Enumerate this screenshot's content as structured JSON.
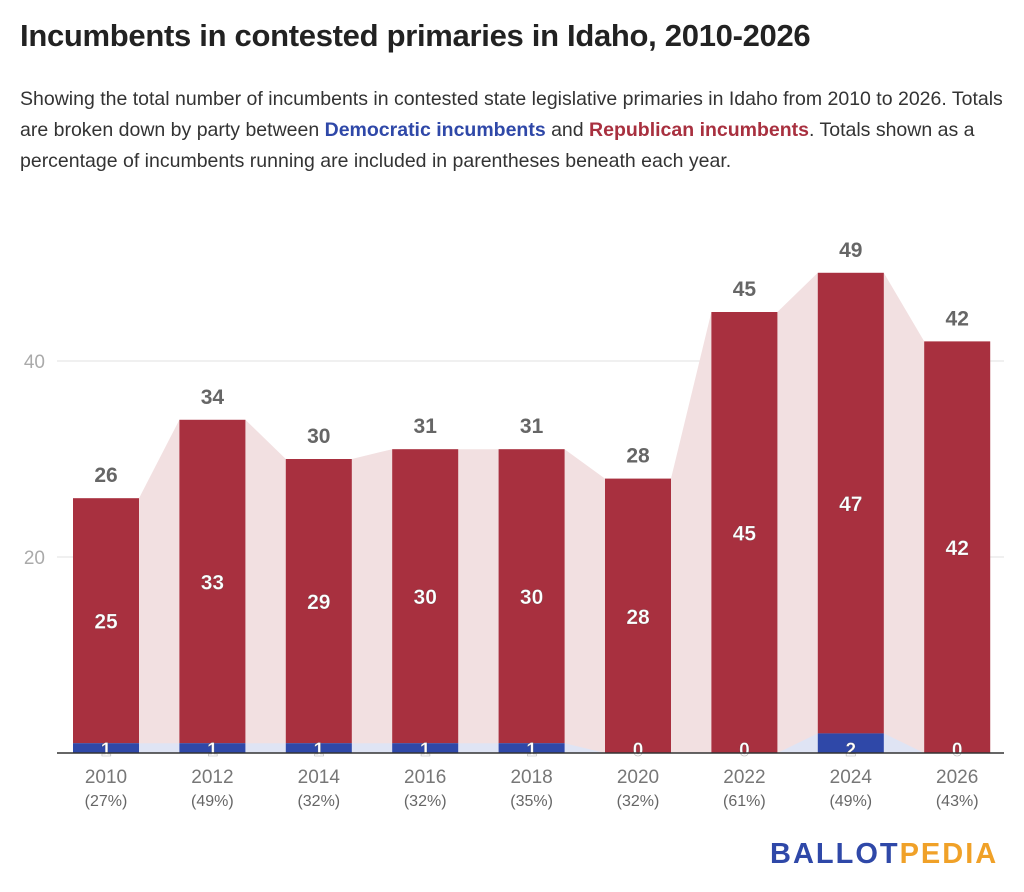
{
  "title": "Incumbents in contested primaries in Idaho, 2010-2026",
  "subtitle": {
    "part1": "Showing the total number of incumbents in contested state legislative primaries in Idaho from 2010 to 2026. Totals are broken down by party between ",
    "dem": "Democratic incumbents",
    "part2": " and ",
    "rep": "Republican incumbents",
    "part3": ". Totals shown as a percentage of incumbents running are included in parentheses beneath each year."
  },
  "logo": {
    "part1": "BALLOT",
    "part2": "PEDIA"
  },
  "colors": {
    "rep": "#a8303f",
    "dem": "#2f48a8",
    "rep_area": "#f2e0e1",
    "dem_area": "#dfe4f4"
  },
  "chart_data": {
    "type": "bar",
    "stacked": true,
    "categories": [
      "2010",
      "2012",
      "2014",
      "2016",
      "2018",
      "2020",
      "2022",
      "2024",
      "2026"
    ],
    "percent_labels": [
      "(27%)",
      "(49%)",
      "(32%)",
      "(32%)",
      "(35%)",
      "(32%)",
      "(61%)",
      "(49%)",
      "(43%)"
    ],
    "series": [
      {
        "name": "Democratic incumbents",
        "values": [
          1,
          1,
          1,
          1,
          1,
          0,
          0,
          2,
          0
        ]
      },
      {
        "name": "Republican incumbents",
        "values": [
          25,
          33,
          29,
          30,
          30,
          28,
          45,
          47,
          42
        ]
      }
    ],
    "totals": [
      26,
      34,
      30,
      31,
      31,
      28,
      45,
      49,
      42
    ],
    "yticks": [
      20,
      40
    ],
    "ylim": [
      0,
      50
    ],
    "grid": true
  }
}
